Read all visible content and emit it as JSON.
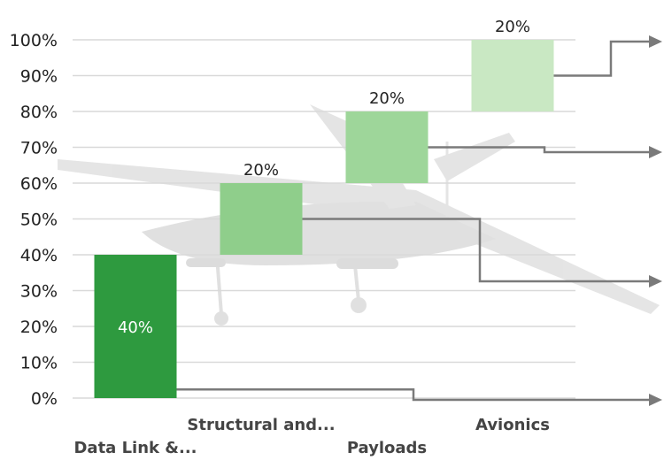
{
  "chart_data": {
    "type": "bar",
    "subtype": "waterfall",
    "categories": [
      "Data Link &...",
      "Structural and...",
      "Payloads",
      "Avionics"
    ],
    "values": [
      40,
      20,
      20,
      20
    ],
    "bases": [
      0,
      40,
      60,
      80
    ],
    "value_labels": [
      "40%",
      "20%",
      "20%",
      "20%"
    ],
    "ylim": [
      0,
      100
    ],
    "yticks": [
      "0%",
      "10%",
      "20%",
      "30%",
      "40%",
      "50%",
      "60%",
      "70%",
      "80%",
      "90%",
      "100%"
    ],
    "grid": true,
    "legend": "none",
    "colors": [
      "#2e9a3f",
      "#8fce8b",
      "#9ed69a",
      "#c9e8c3"
    ],
    "gridline_color": "#d9d9d9",
    "connector_color": "#7a7a7a",
    "background_image": "drone-aircraft"
  }
}
